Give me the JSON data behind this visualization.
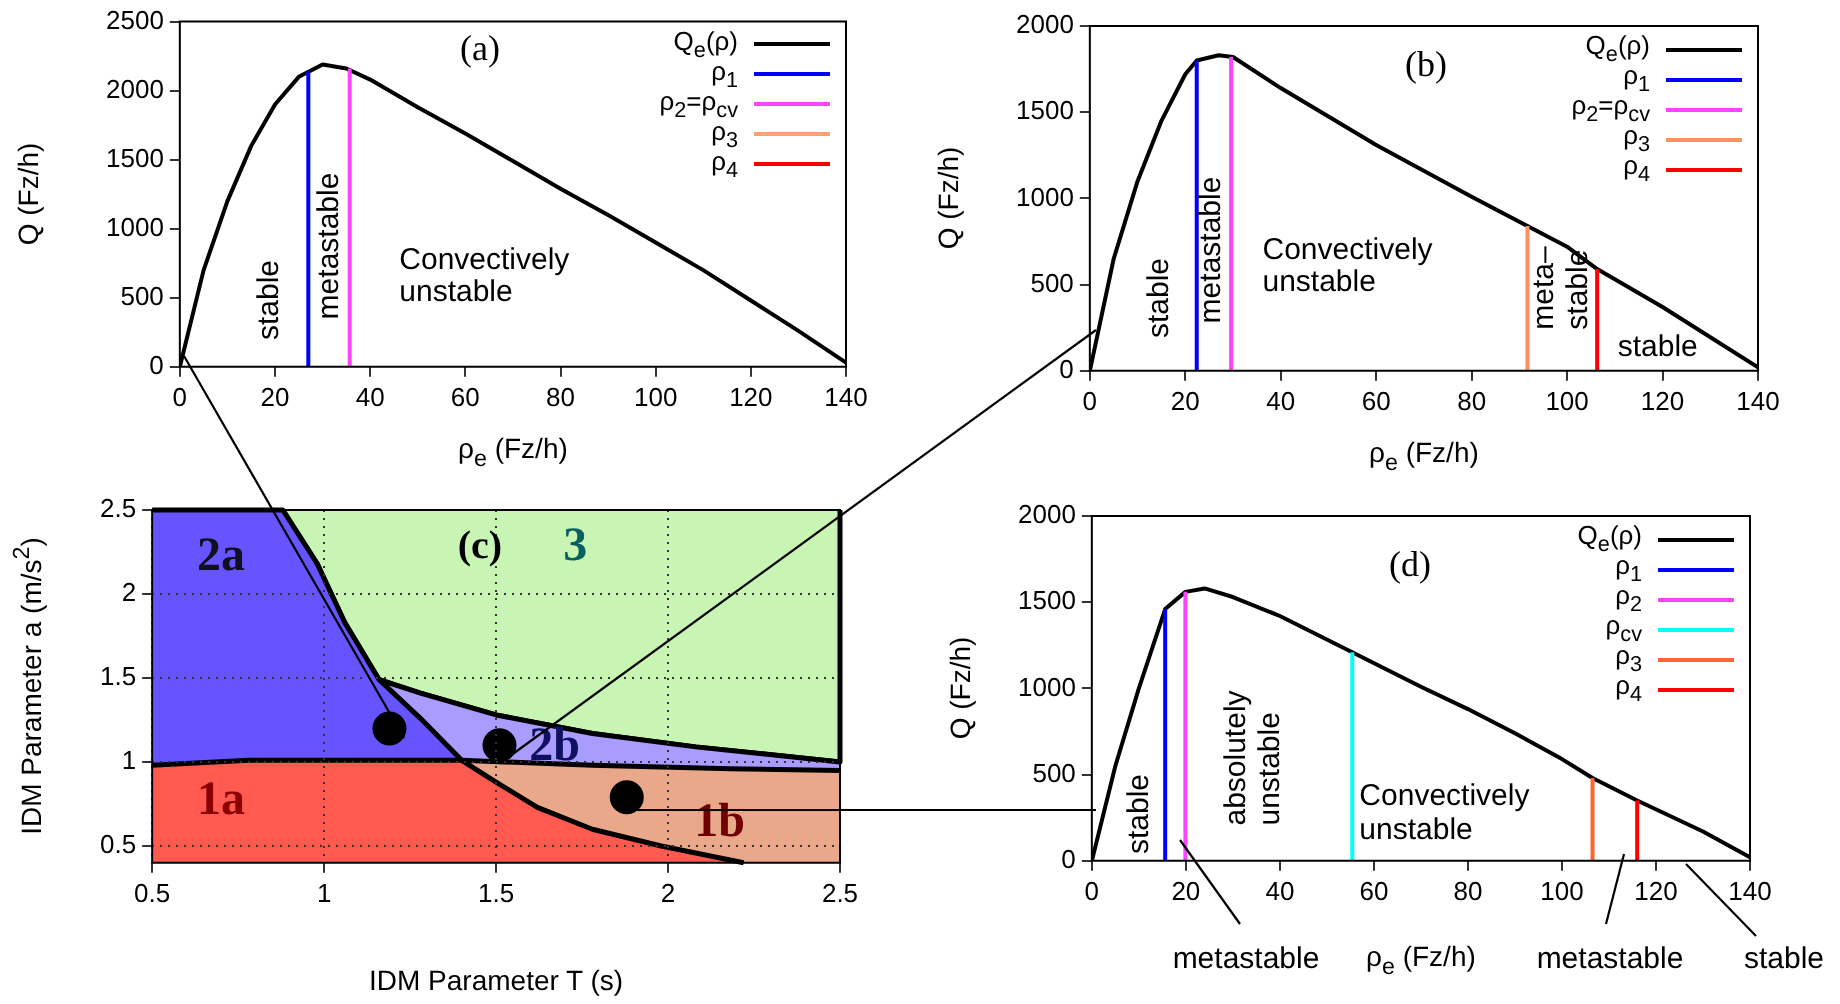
{
  "chart_data": [
    {
      "type": "line",
      "xlabel": "ρ$_{e}$ (Fz/h)",
      "ylabel": "Q (Fz/h)",
      "xlim": [
        0,
        140
      ],
      "ylim": [
        0,
        2500
      ],
      "xticks": [
        0,
        20,
        40,
        60,
        80,
        100,
        120,
        140
      ],
      "yticks": [
        0,
        500,
        1000,
        1500,
        2000,
        2500
      ],
      "legend": "top right",
      "series": [
        {
          "name": "Q$_{e}$(ρ)",
          "color": "#000000",
          "x": [
            0,
            5,
            10,
            15,
            20,
            25,
            30,
            35,
            40,
            50,
            60,
            70,
            80,
            90,
            100,
            110,
            120,
            130,
            140
          ],
          "values": [
            0,
            700,
            1200,
            1600,
            1900,
            2100,
            2190,
            2160,
            2080,
            1880,
            1690,
            1490,
            1290,
            1100,
            900,
            700,
            480,
            260,
            30
          ]
        },
        {
          "name": "ρ$_{1}$",
          "color": "#0000ff",
          "x": [
            27,
            27
          ],
          "values": [
            0,
            2140
          ]
        },
        {
          "name": "ρ$_{2}$=ρ$_{cv}$",
          "color": "#ff44ff",
          "x": [
            35.7,
            35.7
          ],
          "values": [
            0,
            2160
          ]
        },
        {
          "name": "ρ$_{3}$",
          "color": "#ffa070"
        },
        {
          "name": "ρ$_{4}$",
          "color": "#ff0000"
        }
      ],
      "annotations": [
        "(a)",
        "stable",
        "metastable",
        "Convectively\nunstable"
      ]
    },
    {
      "type": "line",
      "xlabel": "ρ$_{e}$ (Fz/h)",
      "ylabel": "Q (Fz/h)",
      "xlim": [
        0,
        140
      ],
      "ylim": [
        0,
        2000
      ],
      "xticks": [
        0,
        20,
        40,
        60,
        80,
        100,
        120,
        140
      ],
      "yticks": [
        0,
        500,
        1000,
        1500,
        2000
      ],
      "legend": "top right",
      "series": [
        {
          "name": "Q$_{e}$(ρ)",
          "color": "#000000",
          "x": [
            0,
            5,
            10,
            15,
            20,
            22.4,
            27,
            30,
            40,
            60,
            80,
            91.7,
            100,
            106.3,
            120,
            140
          ],
          "values": [
            0,
            650,
            1100,
            1450,
            1720,
            1800,
            1830,
            1820,
            1640,
            1310,
            1010,
            840,
            720,
            590,
            370,
            20
          ]
        },
        {
          "name": "ρ$_{1}$",
          "color": "#0000ff",
          "x": [
            22.4,
            22.4
          ],
          "values": [
            0,
            1800
          ]
        },
        {
          "name": "ρ$_{2}$=ρ$_{cv}$",
          "color": "#ff44ff",
          "x": [
            29.6,
            29.6
          ],
          "values": [
            0,
            1820
          ]
        },
        {
          "name": "ρ$_{3}$",
          "color": "#ff9060",
          "x": [
            91.7,
            91.7
          ],
          "values": [
            0,
            840
          ]
        },
        {
          "name": "ρ$_{4}$",
          "color": "#ff0000",
          "x": [
            106.3,
            106.3
          ],
          "values": [
            0,
            590
          ]
        }
      ],
      "annotations": [
        "(b)",
        "stable",
        "metastable",
        "Convectively\nunstable",
        "meta–\nstable",
        "stable"
      ]
    },
    {
      "type": "area",
      "xlabel": "IDM Parameter T (s)",
      "ylabel": "IDM Parameter a (m/s$^{2}$)",
      "xlim": [
        0.5,
        2.5
      ],
      "ylim": [
        0.4,
        2.5
      ],
      "xticks": [
        0.5,
        1,
        1.5,
        2,
        2.5
      ],
      "yticks": [
        0.5,
        1,
        1.5,
        2,
        2.5
      ],
      "grid": true,
      "series": [
        {
          "color": "#c8f5b4",
          "x": [
            0.88,
            0.98,
            1.06,
            1.16,
            1.28,
            1.5,
            1.78,
            2.08,
            2.5,
            2.5
          ],
          "values": [
            2.5,
            2.18,
            1.83,
            1.49,
            1.41,
            1.28,
            1.17,
            1.09,
            1.0,
            2.5
          ]
        },
        {
          "color": "#a89cff",
          "x": [
            1.16,
            1.28,
            1.5,
            1.78,
            2.08,
            2.5
          ],
          "values": [
            1.49,
            1.41,
            1.28,
            1.17,
            1.09,
            1.0
          ]
        },
        {
          "color": "#6655ff",
          "x": [
            0.5,
            0.88,
            0.98,
            1.06,
            1.16,
            1.28,
            1.4
          ],
          "values": [
            2.5,
            2.5,
            2.18,
            1.83,
            1.49,
            1.26,
            1.01
          ]
        },
        {
          "color": "#eaa88a",
          "x": [
            1.4,
            1.78,
            2.18,
            2.5
          ],
          "values": [
            1.01,
            0.98,
            0.96,
            0.95
          ]
        },
        {
          "color": "#ff5a50",
          "x": [
            0.5,
            0.78,
            1.4,
            1.5,
            1.62,
            1.78,
            1.98,
            2.22
          ],
          "values": [
            0.98,
            1.01,
            1.01,
            0.88,
            0.73,
            0.6,
            0.5,
            0.4
          ]
        },
        {
          "type": "scatter",
          "marker": "circle",
          "color": "#000000",
          "x": [
            1.19,
            1.51,
            1.88
          ],
          "values": [
            1.2,
            1.1,
            0.79
          ]
        }
      ],
      "annotations": [
        "(c)",
        "2a",
        "3",
        "2b",
        "1a",
        "1b"
      ]
    },
    {
      "type": "line",
      "xlabel": "ρ$_{e}$ (Fz/h)",
      "ylabel": "Q (Fz/h)",
      "xlim": [
        0,
        140
      ],
      "ylim": [
        0,
        2000
      ],
      "xticks": [
        0,
        20,
        40,
        60,
        80,
        100,
        120,
        140
      ],
      "yticks": [
        0,
        500,
        1000,
        1500,
        2000
      ],
      "legend": "top right",
      "series": [
        {
          "name": "Q$_{e}$(ρ)",
          "color": "#000000",
          "x": [
            0,
            5,
            10,
            15.6,
            19.9,
            24,
            30,
            40,
            55.4,
            70,
            80,
            90,
            100,
            106.5,
            116,
            130,
            140
          ],
          "values": [
            0,
            550,
            1000,
            1460,
            1560,
            1580,
            1530,
            1420,
            1210,
            1010,
            880,
            740,
            590,
            480,
            350,
            170,
            20
          ]
        },
        {
          "name": "ρ$_{1}$",
          "color": "#0000ff",
          "x": [
            15.6,
            15.6
          ],
          "values": [
            0,
            1460
          ]
        },
        {
          "name": "ρ$_{2}$",
          "color": "#ff44ff",
          "x": [
            19.9,
            19.9
          ],
          "values": [
            0,
            1560
          ]
        },
        {
          "name": "ρ$_{cv}$",
          "color": "#00ffff",
          "x": [
            55.4,
            55.4
          ],
          "values": [
            0,
            1210
          ]
        },
        {
          "name": "ρ$_{3}$",
          "color": "#ff6633",
          "x": [
            106.5,
            106.5
          ],
          "values": [
            0,
            480
          ]
        },
        {
          "name": "ρ$_{4}$",
          "color": "#ff0000",
          "x": [
            116,
            116
          ],
          "values": [
            0,
            350
          ]
        }
      ],
      "annotations": [
        "(d)",
        "stable",
        "absolutely\nunstable",
        "Convectively\nunstable",
        "metastable",
        "metastable",
        "stable"
      ]
    }
  ]
}
